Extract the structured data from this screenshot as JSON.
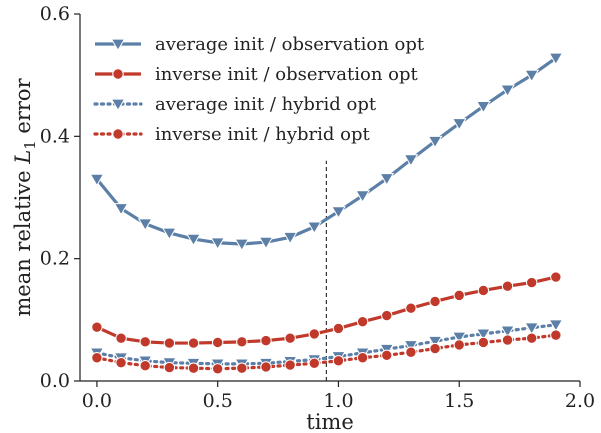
{
  "chart_data": {
    "type": "line",
    "title": "",
    "xlabel": "time",
    "ylabel_prefix": "mean relative ",
    "ylabel_symbol": "L",
    "ylabel_subscript": "1",
    "ylabel_suffix": " error",
    "xlim": [
      -0.07,
      2.0
    ],
    "ylim": [
      0.0,
      0.6
    ],
    "xticks": [
      0.0,
      0.5,
      1.0,
      1.5,
      2.0
    ],
    "xtick_labels": [
      "0.0",
      "0.5",
      "1.0",
      "1.5",
      "2.0"
    ],
    "yticks": [
      0.0,
      0.2,
      0.4,
      0.6
    ],
    "ytick_labels": [
      "0.0",
      "0.2",
      "0.4",
      "0.6"
    ],
    "grid": false,
    "legend_position": "top-left",
    "vline": {
      "x": 0.95,
      "ymax": 0.36,
      "style": "dashed"
    },
    "x": [
      0.0,
      0.1,
      0.2,
      0.3,
      0.4,
      0.5,
      0.6,
      0.7,
      0.8,
      0.9,
      1.0,
      1.1,
      1.2,
      1.3,
      1.4,
      1.5,
      1.6,
      1.7,
      1.8,
      1.9
    ],
    "series": [
      {
        "name": "average init / observation opt",
        "color": "#5b7fa6",
        "marker": "triangle-down",
        "line": "solid",
        "values": [
          0.33,
          0.282,
          0.257,
          0.242,
          0.232,
          0.226,
          0.224,
          0.227,
          0.235,
          0.252,
          0.277,
          0.303,
          0.331,
          0.362,
          0.392,
          0.421,
          0.449,
          0.476,
          0.5,
          0.528
        ]
      },
      {
        "name": "inverse init / observation opt",
        "color": "#c0392b",
        "marker": "circle",
        "line": "solid",
        "values": [
          0.088,
          0.07,
          0.064,
          0.062,
          0.062,
          0.063,
          0.064,
          0.066,
          0.07,
          0.077,
          0.086,
          0.097,
          0.107,
          0.119,
          0.13,
          0.14,
          0.148,
          0.155,
          0.161,
          0.17
        ]
      },
      {
        "name": "average init / hybrid opt",
        "color": "#5b7fa6",
        "marker": "triangle-down",
        "line": "dotted",
        "values": [
          0.046,
          0.038,
          0.033,
          0.03,
          0.029,
          0.028,
          0.028,
          0.029,
          0.032,
          0.035,
          0.04,
          0.046,
          0.052,
          0.058,
          0.065,
          0.072,
          0.077,
          0.082,
          0.087,
          0.092
        ]
      },
      {
        "name": "inverse init / hybrid opt",
        "color": "#c0392b",
        "marker": "circle",
        "line": "dotted",
        "values": [
          0.038,
          0.03,
          0.025,
          0.022,
          0.021,
          0.02,
          0.021,
          0.023,
          0.026,
          0.029,
          0.033,
          0.038,
          0.042,
          0.047,
          0.053,
          0.059,
          0.063,
          0.067,
          0.07,
          0.075
        ]
      }
    ]
  }
}
